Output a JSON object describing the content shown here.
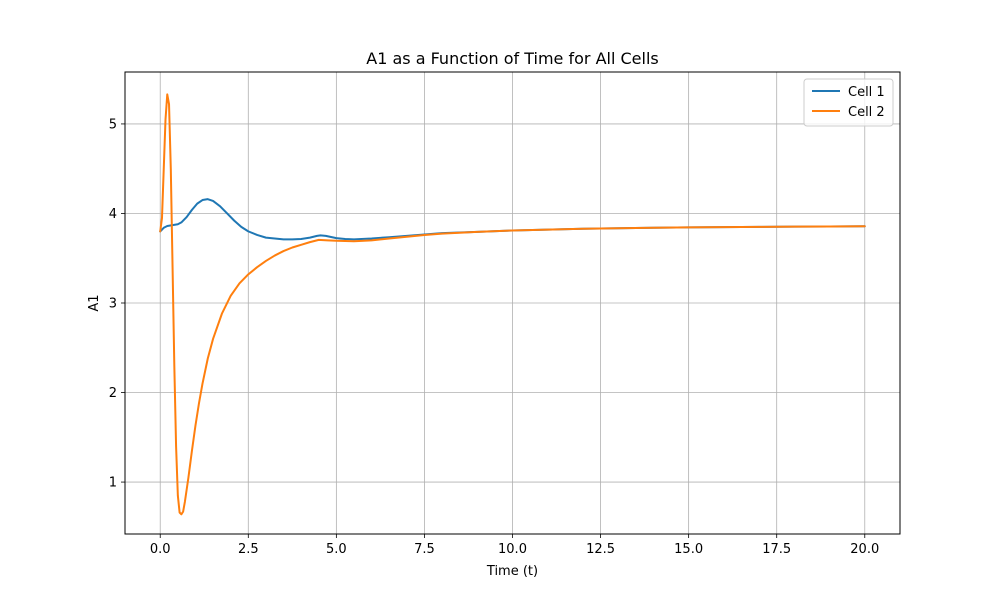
{
  "chart_data": {
    "type": "line",
    "title": "A1 as a Function of Time for All Cells",
    "xlabel": "Time (t)",
    "ylabel": "A1",
    "xlim": [
      -1.0,
      21.0
    ],
    "ylim": [
      0.42,
      5.58
    ],
    "x_ticks": [
      0.0,
      2.5,
      5.0,
      7.5,
      10.0,
      12.5,
      15.0,
      17.5,
      20.0
    ],
    "x_tick_labels": [
      "0.0",
      "2.5",
      "5.0",
      "7.5",
      "10.0",
      "12.5",
      "15.0",
      "17.5",
      "20.0"
    ],
    "y_ticks": [
      1,
      2,
      3,
      4,
      5
    ],
    "y_tick_labels": [
      "1",
      "2",
      "3",
      "4",
      "5"
    ],
    "grid": true,
    "legend_position": "top-right",
    "series": [
      {
        "name": "Cell 1",
        "color": "#1f77b4",
        "points": [
          [
            0.0,
            3.8
          ],
          [
            0.1,
            3.84
          ],
          [
            0.2,
            3.86
          ],
          [
            0.35,
            3.87
          ],
          [
            0.5,
            3.88
          ],
          [
            0.6,
            3.9
          ],
          [
            0.75,
            3.96
          ],
          [
            0.9,
            4.04
          ],
          [
            1.05,
            4.11
          ],
          [
            1.2,
            4.15
          ],
          [
            1.35,
            4.16
          ],
          [
            1.5,
            4.14
          ],
          [
            1.7,
            4.08
          ],
          [
            1.9,
            4.0
          ],
          [
            2.1,
            3.92
          ],
          [
            2.3,
            3.85
          ],
          [
            2.5,
            3.8
          ],
          [
            2.75,
            3.76
          ],
          [
            3.0,
            3.73
          ],
          [
            3.25,
            3.72
          ],
          [
            3.5,
            3.71
          ],
          [
            3.75,
            3.71
          ],
          [
            4.0,
            3.715
          ],
          [
            4.25,
            3.73
          ],
          [
            4.45,
            3.75
          ],
          [
            4.55,
            3.755
          ],
          [
            4.7,
            3.75
          ],
          [
            5.0,
            3.725
          ],
          [
            5.25,
            3.715
          ],
          [
            5.5,
            3.71
          ],
          [
            6.0,
            3.72
          ],
          [
            6.5,
            3.735
          ],
          [
            7.0,
            3.75
          ],
          [
            7.5,
            3.765
          ],
          [
            8.0,
            3.78
          ],
          [
            9.0,
            3.795
          ],
          [
            10.0,
            3.81
          ],
          [
            11.0,
            3.82
          ],
          [
            12.0,
            3.83
          ],
          [
            13.0,
            3.835
          ],
          [
            14.0,
            3.84
          ],
          [
            15.0,
            3.845
          ],
          [
            16.0,
            3.848
          ],
          [
            17.0,
            3.85
          ],
          [
            18.0,
            3.853
          ],
          [
            19.0,
            3.855
          ],
          [
            20.0,
            3.857
          ]
        ]
      },
      {
        "name": "Cell 2",
        "color": "#ff7f0e",
        "points": [
          [
            0.0,
            3.8
          ],
          [
            0.05,
            3.95
          ],
          [
            0.1,
            4.5
          ],
          [
            0.15,
            5.05
          ],
          [
            0.2,
            5.33
          ],
          [
            0.25,
            5.22
          ],
          [
            0.3,
            4.5
          ],
          [
            0.35,
            3.4
          ],
          [
            0.4,
            2.3
          ],
          [
            0.45,
            1.4
          ],
          [
            0.5,
            0.85
          ],
          [
            0.55,
            0.66
          ],
          [
            0.6,
            0.64
          ],
          [
            0.65,
            0.67
          ],
          [
            0.7,
            0.78
          ],
          [
            0.8,
            1.05
          ],
          [
            0.9,
            1.35
          ],
          [
            1.0,
            1.63
          ],
          [
            1.1,
            1.88
          ],
          [
            1.2,
            2.1
          ],
          [
            1.35,
            2.38
          ],
          [
            1.5,
            2.6
          ],
          [
            1.75,
            2.88
          ],
          [
            2.0,
            3.08
          ],
          [
            2.25,
            3.22
          ],
          [
            2.5,
            3.32
          ],
          [
            2.75,
            3.4
          ],
          [
            3.0,
            3.47
          ],
          [
            3.25,
            3.53
          ],
          [
            3.5,
            3.58
          ],
          [
            3.75,
            3.62
          ],
          [
            4.0,
            3.65
          ],
          [
            4.25,
            3.68
          ],
          [
            4.5,
            3.705
          ],
          [
            4.75,
            3.7
          ],
          [
            5.0,
            3.695
          ],
          [
            5.5,
            3.69
          ],
          [
            6.0,
            3.7
          ],
          [
            6.5,
            3.72
          ],
          [
            7.0,
            3.74
          ],
          [
            7.5,
            3.76
          ],
          [
            8.0,
            3.775
          ],
          [
            9.0,
            3.795
          ],
          [
            10.0,
            3.81
          ],
          [
            11.0,
            3.82
          ],
          [
            12.0,
            3.83
          ],
          [
            13.0,
            3.835
          ],
          [
            14.0,
            3.84
          ],
          [
            15.0,
            3.845
          ],
          [
            16.0,
            3.848
          ],
          [
            17.0,
            3.85
          ],
          [
            18.0,
            3.853
          ],
          [
            19.0,
            3.855
          ],
          [
            20.0,
            3.857
          ]
        ]
      }
    ]
  }
}
